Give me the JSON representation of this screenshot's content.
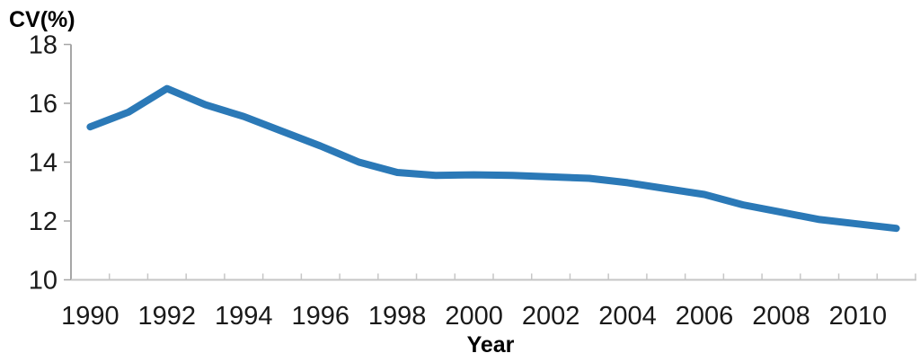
{
  "chart_data": {
    "type": "line",
    "title": "",
    "ylabel": "CV(%)",
    "xlabel": "Year",
    "x": [
      1990,
      1991,
      1992,
      1993,
      1994,
      1995,
      1996,
      1997,
      1998,
      1999,
      2000,
      2001,
      2002,
      2003,
      2004,
      2005,
      2006,
      2007,
      2008,
      2009,
      2010,
      2011
    ],
    "series": [
      {
        "name": "CV",
        "color": "#2b79b7",
        "values": [
          15.2,
          15.7,
          16.5,
          15.95,
          15.55,
          15.05,
          14.55,
          14.0,
          13.65,
          13.55,
          13.57,
          13.55,
          13.5,
          13.45,
          13.3,
          13.1,
          12.9,
          12.55,
          12.3,
          12.05,
          11.9,
          11.75
        ]
      }
    ],
    "ylim": [
      10,
      18
    ],
    "yticks": [
      10,
      12,
      14,
      16,
      18
    ],
    "xtick_labels": [
      "1990",
      "1992",
      "1994",
      "1996",
      "1998",
      "2000",
      "2002",
      "2004",
      "2006",
      "2008",
      "2010"
    ],
    "grid": "off",
    "legend": "none"
  }
}
